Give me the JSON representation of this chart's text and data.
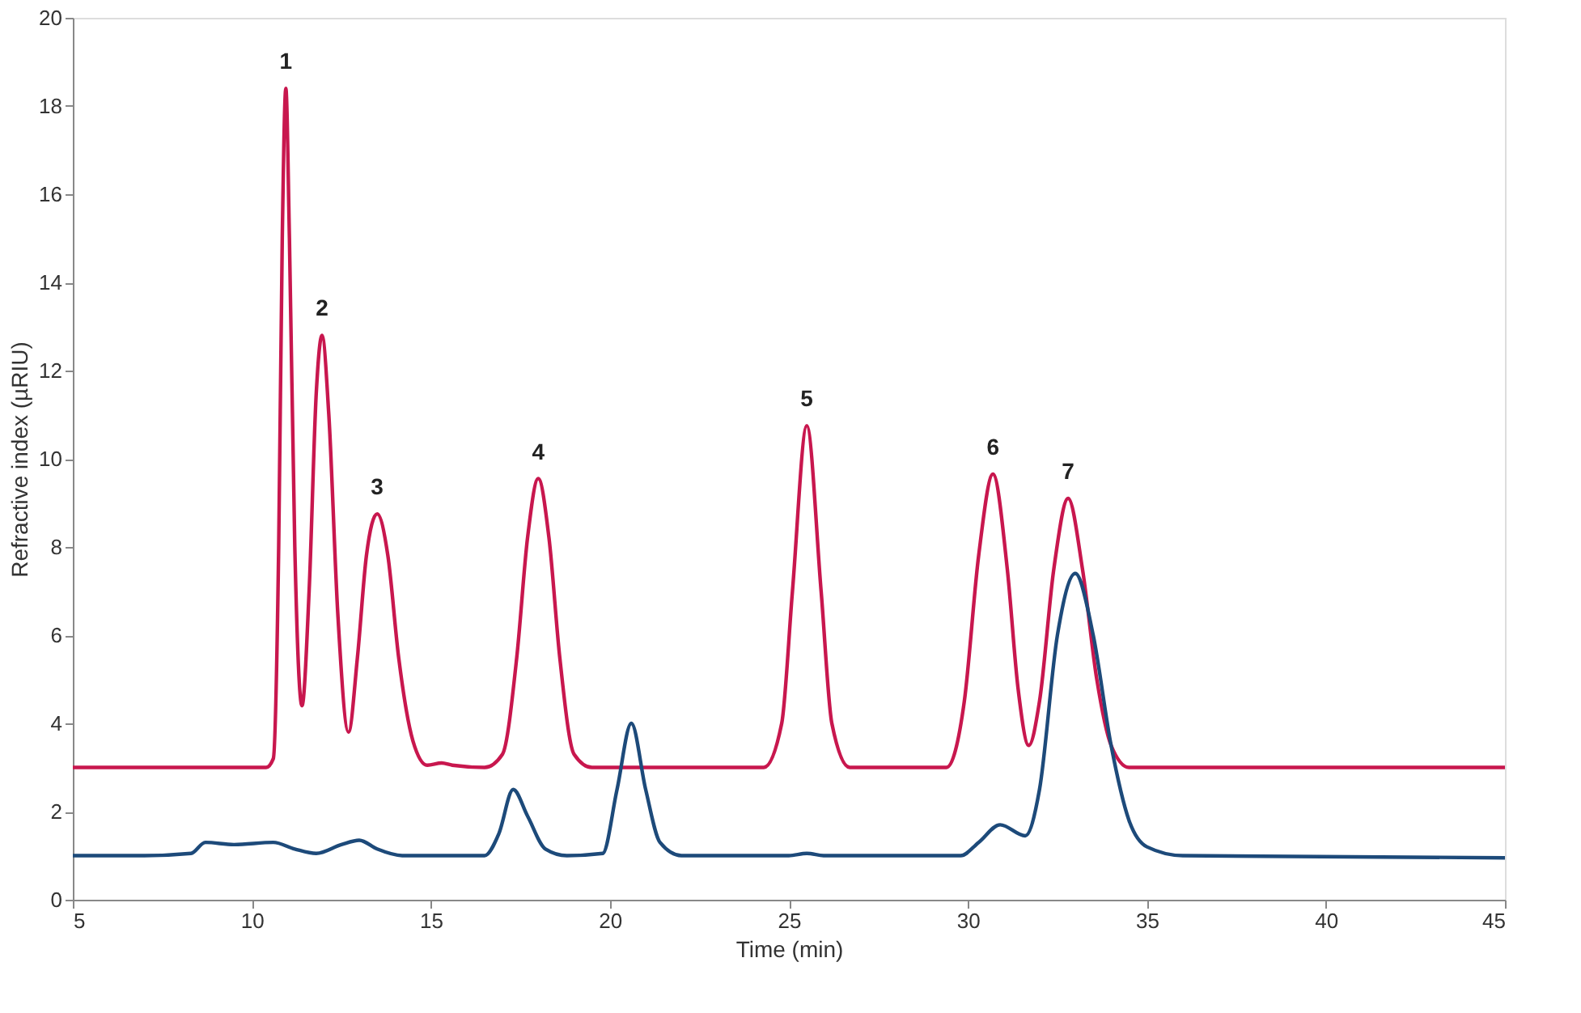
{
  "chart_data": {
    "type": "line",
    "xlabel": "Time (min)",
    "ylabel": "Refractive index (µRIU)",
    "xlim": [
      5,
      45
    ],
    "xticks": [
      5,
      10,
      15,
      20,
      25,
      30,
      35,
      40,
      45
    ],
    "ylim": [
      0,
      20
    ],
    "yticks": [
      0,
      2,
      4,
      6,
      8,
      10,
      12,
      14,
      16,
      18,
      20
    ],
    "grid": false,
    "marker": "none",
    "line_style": "solid",
    "series": [
      {
        "color": "#c8174e",
        "x": [
          5,
          10.4,
          10.6,
          10.75,
          10.85,
          10.95,
          11.05,
          11.2,
          11.4,
          11.6,
          11.8,
          11.96,
          12.15,
          12.4,
          12.7,
          12.95,
          13.2,
          13.5,
          13.8,
          14.1,
          14.5,
          14.9,
          15.3,
          15.6,
          16.5,
          17.0,
          17.4,
          17.7,
          18.0,
          18.3,
          18.6,
          19.0,
          19.5,
          24.3,
          24.8,
          25.1,
          25.5,
          25.9,
          26.2,
          26.7,
          29.4,
          29.9,
          30.3,
          30.7,
          31.1,
          31.4,
          31.7,
          32.0,
          32.4,
          32.8,
          33.2,
          33.6,
          34.0,
          34.5,
          45
        ],
        "values": [
          3.0,
          3.0,
          3.2,
          8,
          15,
          18.4,
          15,
          8,
          4.4,
          7,
          11.5,
          12.8,
          11,
          6.5,
          3.8,
          5.5,
          7.8,
          8.75,
          7.8,
          5.5,
          3.6,
          3.05,
          3.1,
          3.05,
          3.0,
          3.3,
          5.5,
          8.2,
          9.55,
          8.2,
          5.5,
          3.3,
          3.0,
          3.0,
          4.0,
          7.0,
          10.75,
          7.0,
          4.0,
          3.0,
          3.0,
          4.5,
          7.8,
          9.65,
          7.5,
          4.8,
          3.5,
          4.5,
          7.5,
          9.1,
          7.5,
          5.0,
          3.5,
          3.0,
          3.0
        ]
      },
      {
        "color": "#1d4a7a",
        "x": [
          5,
          7,
          8.3,
          8.7,
          9.5,
          10.6,
          11.2,
          11.8,
          12.5,
          13.0,
          13.5,
          14.2,
          16.5,
          16.9,
          17.3,
          17.7,
          18.2,
          18.8,
          19.8,
          20.2,
          20.6,
          21.0,
          21.4,
          22,
          25,
          25.5,
          26,
          29.8,
          30.3,
          30.9,
          31.6,
          32.0,
          32.5,
          33.0,
          33.5,
          34.0,
          34.5,
          35.0,
          36,
          45
        ],
        "values": [
          1.0,
          1.0,
          1.05,
          1.3,
          1.25,
          1.3,
          1.15,
          1.05,
          1.25,
          1.35,
          1.15,
          1.0,
          1.0,
          1.5,
          2.5,
          1.9,
          1.15,
          1.0,
          1.05,
          2.5,
          4.0,
          2.5,
          1.3,
          1.0,
          1.0,
          1.05,
          1.0,
          1.0,
          1.3,
          1.7,
          1.45,
          2.5,
          6.0,
          7.4,
          6.0,
          3.5,
          1.8,
          1.2,
          1.0,
          0.95
        ]
      }
    ],
    "annotations": [
      {
        "text": "1",
        "x": 10.95,
        "y": 18.4
      },
      {
        "text": "2",
        "x": 11.96,
        "y": 12.8
      },
      {
        "text": "3",
        "x": 13.5,
        "y": 8.75
      },
      {
        "text": "4",
        "x": 18.0,
        "y": 9.55
      },
      {
        "text": "5",
        "x": 25.5,
        "y": 10.75
      },
      {
        "text": "6",
        "x": 30.7,
        "y": 9.65
      },
      {
        "text": "7",
        "x": 32.8,
        "y": 9.1
      }
    ]
  }
}
